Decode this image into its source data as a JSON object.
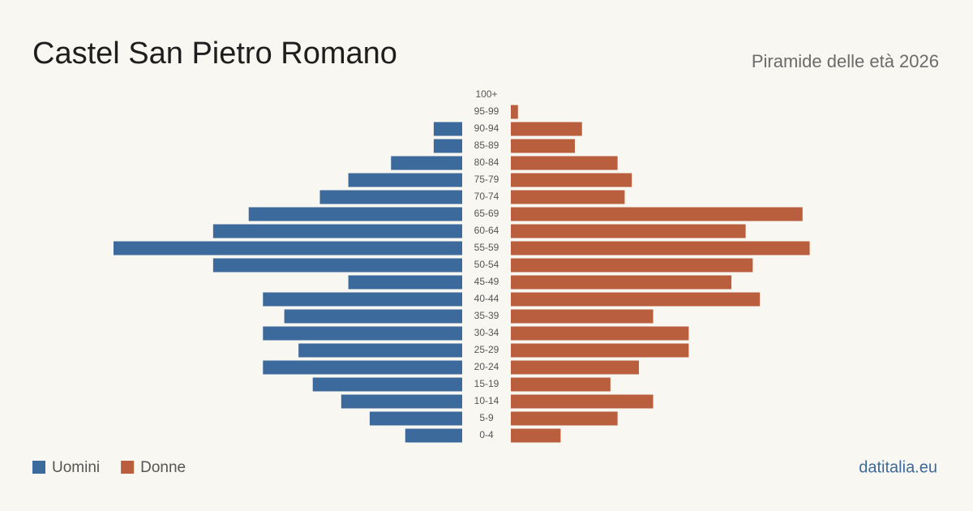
{
  "chart_data": {
    "type": "pyramid",
    "title": "Castel San Pietro Romano",
    "subtitle": "Piramide delle età 2026",
    "source": "datitalia.eu",
    "categories": [
      "100+",
      "95-99",
      "90-94",
      "85-89",
      "80-84",
      "75-79",
      "70-74",
      "65-69",
      "60-64",
      "55-59",
      "50-54",
      "45-49",
      "40-44",
      "35-39",
      "30-34",
      "25-29",
      "20-24",
      "15-19",
      "10-14",
      "5-9",
      "0-4"
    ],
    "series": [
      {
        "name": "Uomini",
        "color": "#3d6a9c",
        "values": [
          0,
          0,
          4,
          4,
          10,
          16,
          20,
          30,
          35,
          49,
          35,
          16,
          28,
          25,
          28,
          23,
          28,
          21,
          17,
          13,
          8
        ]
      },
      {
        "name": "Donne",
        "color": "#b95f3d",
        "values": [
          0,
          1,
          10,
          9,
          15,
          17,
          16,
          41,
          33,
          42,
          34,
          31,
          35,
          20,
          25,
          25,
          18,
          14,
          20,
          15,
          7
        ]
      }
    ]
  }
}
